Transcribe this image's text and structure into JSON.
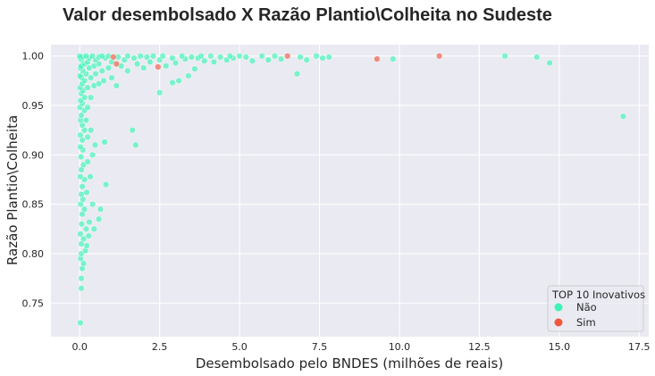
{
  "chart_data": {
    "type": "scatter",
    "title": "Valor desembolsado X Razão Plantio\\Colheita no Sudeste",
    "xlabel": "Desembolsado pelo BNDES (milhões de reais)",
    "ylabel": "Razão Plantio\\Colheita",
    "xlim": [
      -0.9,
      17.8
    ],
    "ylim": [
      0.716,
      1.0115
    ],
    "xticks": [
      0.0,
      2.5,
      5.0,
      7.5,
      10.0,
      12.5,
      15.0,
      17.5
    ],
    "xtick_labels": [
      "0.0",
      "2.5",
      "5.0",
      "7.5",
      "10.0",
      "12.5",
      "15.0",
      "17.5"
    ],
    "yticks": [
      0.75,
      0.8,
      0.85,
      0.9,
      0.95,
      1.0
    ],
    "ytick_labels": [
      "0.75",
      "0.80",
      "0.85",
      "0.90",
      "0.95",
      "1.00"
    ],
    "grid": true,
    "background": "#eaeaf2",
    "legend": {
      "title": "TOP 10 Inovativos",
      "placement": "bottom-right",
      "entries": [
        {
          "label": "Não",
          "color": "#3cf5b4"
        },
        {
          "label": "Sim",
          "color": "#f0583e"
        }
      ]
    },
    "series": [
      {
        "name": "Não",
        "color": "#3cf5b4",
        "points": [
          [
            0.02,
            0.73
          ],
          [
            0.05,
            0.765
          ],
          [
            0.05,
            0.775
          ],
          [
            0.08,
            0.785
          ],
          [
            0.12,
            0.79
          ],
          [
            0.03,
            0.795
          ],
          [
            0.05,
            0.8
          ],
          [
            0.18,
            0.803
          ],
          [
            0.22,
            0.808
          ],
          [
            0.05,
            0.81
          ],
          [
            0.12,
            0.815
          ],
          [
            0.28,
            0.818
          ],
          [
            0.02,
            0.82
          ],
          [
            0.2,
            0.825
          ],
          [
            0.06,
            0.83
          ],
          [
            0.45,
            0.825
          ],
          [
            0.3,
            0.832
          ],
          [
            0.08,
            0.84
          ],
          [
            0.6,
            0.835
          ],
          [
            0.15,
            0.845
          ],
          [
            0.03,
            0.85
          ],
          [
            0.65,
            0.845
          ],
          [
            0.4,
            0.85
          ],
          [
            0.1,
            0.855
          ],
          [
            0.05,
            0.86
          ],
          [
            0.22,
            0.862
          ],
          [
            0.08,
            0.868
          ],
          [
            0.82,
            0.87
          ],
          [
            0.15,
            0.875
          ],
          [
            0.02,
            0.878
          ],
          [
            0.33,
            0.878
          ],
          [
            0.05,
            0.885
          ],
          [
            0.12,
            0.89
          ],
          [
            0.25,
            0.893
          ],
          [
            0.04,
            0.898
          ],
          [
            0.4,
            0.9
          ],
          [
            0.1,
            0.905
          ],
          [
            0.02,
            0.908
          ],
          [
            1.75,
            0.91
          ],
          [
            0.48,
            0.91
          ],
          [
            0.08,
            0.915
          ],
          [
            0.78,
            0.913
          ],
          [
            0.25,
            0.918
          ],
          [
            0.02,
            0.92
          ],
          [
            0.15,
            0.925
          ],
          [
            1.65,
            0.925
          ],
          [
            0.35,
            0.925
          ],
          [
            0.08,
            0.93
          ],
          [
            0.03,
            0.935
          ],
          [
            0.2,
            0.935
          ],
          [
            0.05,
            0.94
          ],
          [
            0.15,
            0.945
          ],
          [
            0.01,
            0.948
          ],
          [
            0.25,
            0.948
          ],
          [
            0.08,
            0.952
          ],
          [
            0.03,
            0.955
          ],
          [
            0.15,
            0.958
          ],
          [
            0.35,
            0.958
          ],
          [
            0.05,
            0.962
          ],
          [
            2.5,
            0.963
          ],
          [
            0.1,
            0.965
          ],
          [
            0.01,
            0.968
          ],
          [
            0.25,
            0.968
          ],
          [
            0.45,
            0.97
          ],
          [
            1.15,
            0.97
          ],
          [
            0.08,
            0.972
          ],
          [
            0.6,
            0.972
          ],
          [
            0.15,
            0.975
          ],
          [
            0.75,
            0.975
          ],
          [
            2.9,
            0.973
          ],
          [
            3.1,
            0.975
          ],
          [
            0.05,
            0.978
          ],
          [
            0.35,
            0.978
          ],
          [
            1.0,
            0.978
          ],
          [
            6.8,
            0.982
          ],
          [
            0.01,
            0.98
          ],
          [
            0.2,
            0.982
          ],
          [
            0.5,
            0.982
          ],
          [
            3.4,
            0.98
          ],
          [
            0.1,
            0.985
          ],
          [
            0.7,
            0.985
          ],
          [
            1.5,
            0.985
          ],
          [
            0.02,
            0.988
          ],
          [
            0.3,
            0.988
          ],
          [
            0.9,
            0.988
          ],
          [
            2.0,
            0.988
          ],
          [
            3.6,
            0.987
          ],
          [
            0.05,
            0.99
          ],
          [
            0.45,
            0.99
          ],
          [
            1.3,
            0.99
          ],
          [
            0.15,
            0.992
          ],
          [
            0.6,
            0.992
          ],
          [
            1.8,
            0.992
          ],
          [
            2.7,
            0.99
          ],
          [
            0.25,
            0.994
          ],
          [
            1.0,
            0.994
          ],
          [
            2.2,
            0.994
          ],
          [
            3.0,
            0.993
          ],
          [
            3.9,
            0.995
          ],
          [
            4.2,
            0.994
          ],
          [
            5.4,
            0.995
          ],
          [
            0.05,
            0.996
          ],
          [
            0.5,
            0.996
          ],
          [
            1.4,
            0.996
          ],
          [
            2.5,
            0.996
          ],
          [
            3.3,
            0.997
          ],
          [
            4.6,
            0.996
          ],
          [
            5.9,
            0.996
          ],
          [
            6.3,
            0.997
          ],
          [
            7.1,
            0.996
          ],
          [
            9.8,
            0.997
          ],
          [
            14.7,
            0.993
          ],
          [
            0.02,
            0.998
          ],
          [
            0.3,
            0.998
          ],
          [
            0.8,
            0.998
          ],
          [
            1.7,
            0.998
          ],
          [
            2.9,
            0.998
          ],
          [
            3.7,
            0.998
          ],
          [
            4.8,
            0.998
          ],
          [
            7.6,
            0.998
          ],
          [
            0.1,
            0.999
          ],
          [
            0.6,
            0.999
          ],
          [
            1.2,
            0.999
          ],
          [
            2.1,
            0.999
          ],
          [
            3.5,
            0.999
          ],
          [
            4.4,
            0.999
          ],
          [
            5.2,
            0.999
          ],
          [
            6.9,
            0.999
          ],
          [
            7.8,
            0.999
          ],
          [
            14.3,
            0.999
          ],
          [
            0.0,
            1.0
          ],
          [
            0.2,
            1.0
          ],
          [
            0.4,
            1.0
          ],
          [
            0.7,
            1.0
          ],
          [
            0.9,
            1.0
          ],
          [
            1.5,
            1.0
          ],
          [
            1.9,
            1.0
          ],
          [
            2.3,
            1.0
          ],
          [
            2.6,
            1.0
          ],
          [
            3.2,
            1.0
          ],
          [
            3.8,
            1.0
          ],
          [
            4.1,
            1.0
          ],
          [
            4.7,
            1.0
          ],
          [
            5.0,
            1.0
          ],
          [
            5.7,
            1.0
          ],
          [
            6.1,
            1.0
          ],
          [
            7.4,
            1.0
          ],
          [
            13.3,
            1.0
          ],
          [
            17.0,
            0.939
          ]
        ]
      },
      {
        "name": "Sim",
        "color": "#f0583e",
        "points": [
          [
            1.05,
            0.999
          ],
          [
            1.15,
            0.992
          ],
          [
            2.45,
            0.989
          ],
          [
            6.5,
            1.0
          ],
          [
            9.3,
            0.997
          ],
          [
            11.25,
            1.0
          ]
        ]
      }
    ]
  }
}
